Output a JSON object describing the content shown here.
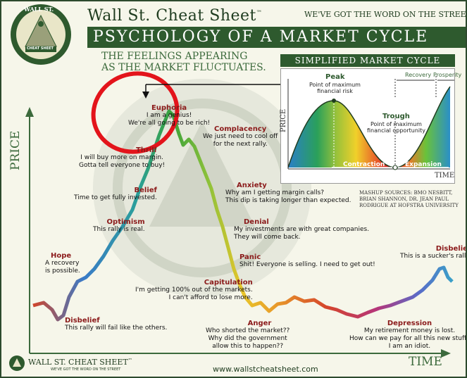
{
  "header": {
    "brand": "Wall St. Cheat Sheet",
    "tm": "™",
    "tagline": "WE'VE GOT THE WORD ON THE STREET",
    "main_title": "PSYCHOLOGY OF A MARKET CYCLE",
    "subtitle_line1": "THE FEELINGS APPEARING",
    "subtitle_line2": "AS THE MARKET FLUCTUATES."
  },
  "logo": {
    "top_text": "WALL ST.",
    "bottom_text": "CHEAT SHEET"
  },
  "axes": {
    "y_label": "PRICE",
    "x_label": "TIME"
  },
  "stages": [
    {
      "key": "hope",
      "label": "Hope",
      "text": [
        "A recovery",
        "is possible."
      ]
    },
    {
      "key": "optimism",
      "label": "Optimism",
      "text": [
        "This rally is real."
      ]
    },
    {
      "key": "belief",
      "label": "Belief",
      "text": [
        "Time to get fully invested."
      ]
    },
    {
      "key": "thrill",
      "label": "Thrill",
      "text": [
        "I will buy more on margin.",
        "Gotta tell everyone to buy!"
      ]
    },
    {
      "key": "euphoria",
      "label": "Euphoria",
      "text": [
        "I am a genius!",
        "We're all going to be rich!"
      ]
    },
    {
      "key": "complacency",
      "label": "Complacency",
      "text": [
        "We just need to cool off",
        "for the next rally."
      ]
    },
    {
      "key": "anxiety",
      "label": "Anxiety",
      "text": [
        "Why am I getting margin calls?",
        "This dip is taking longer than expected."
      ]
    },
    {
      "key": "denial",
      "label": "Denial",
      "text": [
        "My investments are with great companies.",
        "They will come back."
      ]
    },
    {
      "key": "panic",
      "label": "Panic",
      "text": [
        "Shit! Everyone is selling. I need to get out!"
      ]
    },
    {
      "key": "capitulation",
      "label": "Capitulation",
      "text": [
        "I'm getting 100% out of the markets.",
        "I can't afford to lose more."
      ]
    },
    {
      "key": "anger",
      "label": "Anger",
      "text": [
        "Who shorted the market??",
        "Why did the government",
        "allow this to happen??"
      ]
    },
    {
      "key": "depression",
      "label": "Depression",
      "text": [
        "My retirement money is lost.",
        "How can we pay for all this new stuff?",
        "I am an idiot."
      ]
    },
    {
      "key": "disbelief_left",
      "label": "Disbelief",
      "text": [
        "This rally will fail like the others."
      ]
    },
    {
      "key": "disbelief_right",
      "label": "Disbelief",
      "text": [
        "This is a sucker's rally."
      ]
    }
  ],
  "inset": {
    "title": "SIMPLIFIED MARKET CYCLE",
    "peak_title": "Peak",
    "peak_text": [
      "Point of maximum",
      "financial risk"
    ],
    "trough_title": "Trough",
    "trough_text": [
      "Point of maximum",
      "financial opportunity"
    ],
    "recovery": "Recovery",
    "prosperity": "Prosperity",
    "contraction": "Contraction",
    "expansion": "Expansion",
    "y_label": "PRICE",
    "x_label": "TIME"
  },
  "sources": {
    "line1": "MASHUP SOURCES: BMO NESBITT,",
    "line2": "BRIAN SHANNON, DR. JEAN PAUL",
    "line3": "RODRIGUE AT HOFSTRA UNIVERSITY"
  },
  "footer": {
    "brand": "WALL ST. CHEAT SHEET",
    "tm": "™",
    "tagline": "WE'VE GOT THE WORD ON THE STREET",
    "url": "www.wallstcheatsheet.com"
  },
  "colors": {
    "brand_green": "#2e5a2e",
    "label_red": "#8b1a1a",
    "highlight_red": "#e3141b"
  }
}
